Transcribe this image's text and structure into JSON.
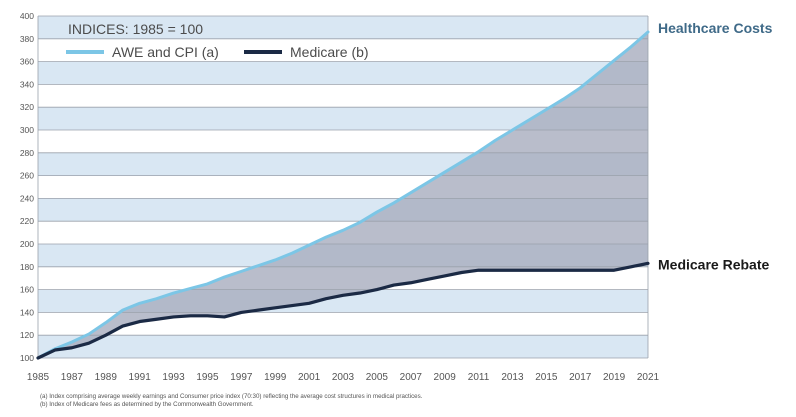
{
  "chart_data": {
    "type": "line",
    "subtitle": "INDICES: 1985 = 100",
    "x_ticks": [
      "1985",
      "1987",
      "1989",
      "1991",
      "1993",
      "1995",
      "1997",
      "1999",
      "2001",
      "2003",
      "2005",
      "2007",
      "2009",
      "2011",
      "2013",
      "2015",
      "2017",
      "2019",
      "2021"
    ],
    "y_ticks": [
      "100",
      "120",
      "140",
      "160",
      "180",
      "200",
      "220",
      "240",
      "260",
      "280",
      "300",
      "320",
      "340",
      "360",
      "380",
      "400"
    ],
    "xlim": [
      1985,
      2021
    ],
    "ylim": [
      100,
      400
    ],
    "grid": true,
    "band_colors": [
      "#d9e7f3",
      "#ffffff"
    ],
    "shaded_gap_color": "#a9afbf",
    "legend_position": "top-left",
    "series": [
      {
        "name": "AWE and CPI (a)",
        "end_label": "Healthcare Costs",
        "color": "#7cc6e6",
        "x": [
          1985,
          1986,
          1987,
          1988,
          1989,
          1990,
          1991,
          1992,
          1993,
          1994,
          1995,
          1996,
          1997,
          1998,
          1999,
          2000,
          2001,
          2002,
          2003,
          2004,
          2005,
          2006,
          2007,
          2008,
          2009,
          2010,
          2011,
          2012,
          2013,
          2014,
          2015,
          2016,
          2017,
          2018,
          2019,
          2020,
          2021
        ],
        "values": [
          100,
          108,
          114,
          121,
          131,
          142,
          148,
          152,
          157,
          161,
          165,
          171,
          176,
          181,
          186,
          192,
          199,
          206,
          212,
          219,
          228,
          236,
          245,
          254,
          263,
          272,
          281,
          291,
          300,
          309,
          318,
          327,
          337,
          349,
          361,
          373,
          386
        ]
      },
      {
        "name": "Medicare (b)",
        "end_label": "Medicare Rebate",
        "color": "#1b2a45",
        "x": [
          1985,
          1986,
          1987,
          1988,
          1989,
          1990,
          1991,
          1992,
          1993,
          1994,
          1995,
          1996,
          1997,
          1998,
          1999,
          2000,
          2001,
          2002,
          2003,
          2004,
          2005,
          2006,
          2007,
          2008,
          2009,
          2010,
          2011,
          2012,
          2013,
          2014,
          2015,
          2016,
          2017,
          2018,
          2019,
          2020,
          2021
        ],
        "values": [
          100,
          107,
          109,
          113,
          120,
          128,
          132,
          134,
          136,
          137,
          137,
          136,
          140,
          142,
          144,
          146,
          148,
          152,
          155,
          157,
          160,
          164,
          166,
          169,
          172,
          175,
          177,
          177,
          177,
          177,
          177,
          177,
          177,
          177,
          177,
          180,
          183
        ]
      }
    ],
    "footnotes": [
      "(a) Index comprising average weekly earnings and Consumer price index (70:30) reflecting the average cost structures in medical practices.",
      "(b) Index of Medicare fees as determined by the Commonwealth Government."
    ]
  }
}
